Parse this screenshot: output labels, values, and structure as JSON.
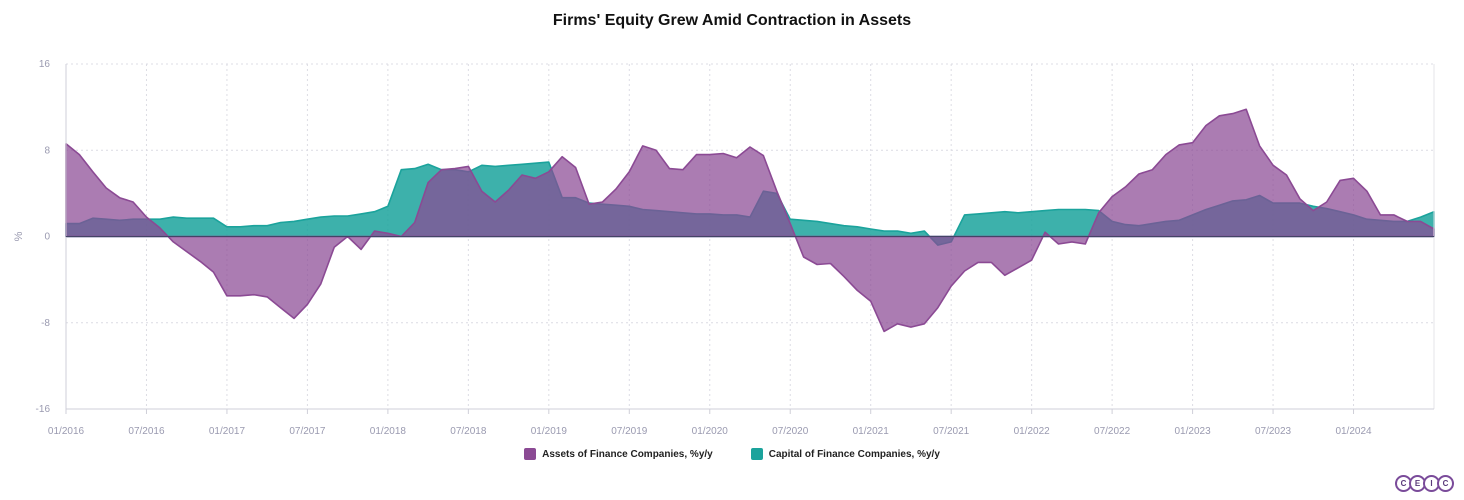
{
  "chart_data": {
    "type": "area",
    "title": "Firms' Equity Grew Amid Contraction in Assets",
    "ylabel": "%",
    "ylim": [
      -16,
      16
    ],
    "yticks": [
      -16,
      -8,
      0,
      8,
      16
    ],
    "grid": true,
    "legend_position": "bottom",
    "x_start": "01/2016",
    "x_end": "10/2024",
    "xtick_labels": [
      "01/2016",
      "07/2016",
      "01/2017",
      "07/2017",
      "01/2018",
      "07/2018",
      "01/2019",
      "07/2019",
      "01/2020",
      "07/2020",
      "01/2021",
      "07/2021",
      "01/2022",
      "07/2022",
      "01/2023",
      "07/2023",
      "01/2024"
    ],
    "series": [
      {
        "name": "Assets of Finance Companies, %y/y",
        "color": "#8b4a94",
        "values": [
          8.6,
          7.6,
          6.0,
          4.5,
          3.6,
          3.2,
          1.8,
          0.8,
          -0.5,
          -1.4,
          -2.3,
          -3.3,
          -5.5,
          -5.5,
          -5.4,
          -5.6,
          -6.6,
          -7.6,
          -6.3,
          -4.4,
          -1.0,
          0.0,
          -1.2,
          0.5,
          0.3,
          0.0,
          1.3,
          5.0,
          6.2,
          6.3,
          6.5,
          4.2,
          3.2,
          4.3,
          5.7,
          5.4,
          6.0,
          7.4,
          6.4,
          3.0,
          3.2,
          4.4,
          6.0,
          8.4,
          8.0,
          6.3,
          6.2,
          7.6,
          7.6,
          7.7,
          7.3,
          8.3,
          7.5,
          4.2,
          1.2,
          -1.9,
          -2.6,
          -2.5,
          -3.7,
          -5.0,
          -6.0,
          -8.8,
          -8.1,
          -8.4,
          -8.1,
          -6.6,
          -4.6,
          -3.2,
          -2.4,
          -2.4,
          -3.6,
          -2.9,
          -2.2,
          0.4,
          -0.7,
          -0.5,
          -0.7,
          2.2,
          3.7,
          4.6,
          5.8,
          6.2,
          7.6,
          8.5,
          8.7,
          10.3,
          11.2,
          11.4,
          11.8,
          8.4,
          6.6,
          5.7,
          3.5,
          2.4,
          3.2,
          5.2,
          5.4,
          4.2,
          2.0,
          2.0,
          1.4,
          1.4,
          0.7
        ]
      },
      {
        "name": "Capital of Finance Companies, %y/y",
        "color": "#1ba39c",
        "values": [
          1.2,
          1.2,
          1.7,
          1.6,
          1.5,
          1.6,
          1.6,
          1.6,
          1.8,
          1.7,
          1.7,
          1.7,
          0.9,
          0.9,
          1.0,
          1.0,
          1.3,
          1.4,
          1.6,
          1.8,
          1.9,
          1.9,
          2.1,
          2.3,
          2.8,
          6.2,
          6.3,
          6.7,
          6.2,
          6.2,
          6.0,
          6.6,
          6.5,
          6.6,
          6.7,
          6.8,
          6.9,
          3.6,
          3.6,
          3.1,
          3.0,
          2.9,
          2.8,
          2.5,
          2.4,
          2.3,
          2.2,
          2.1,
          2.1,
          2.0,
          2.0,
          1.8,
          4.2,
          4.0,
          1.6,
          1.5,
          1.4,
          1.2,
          1.0,
          0.9,
          0.7,
          0.5,
          0.5,
          0.3,
          0.5,
          -0.8,
          -0.5,
          2.0,
          2.1,
          2.2,
          2.3,
          2.2,
          2.3,
          2.4,
          2.5,
          2.5,
          2.5,
          2.4,
          1.4,
          1.1,
          1.0,
          1.2,
          1.4,
          1.5,
          2.0,
          2.5,
          2.9,
          3.3,
          3.4,
          3.8,
          3.1,
          3.1,
          3.1,
          2.8,
          2.6,
          2.3,
          2.0,
          1.6,
          1.5,
          1.4,
          1.4,
          1.8,
          2.3
        ]
      }
    ]
  },
  "legend": {
    "assets_label": "Assets of Finance Companies, %y/y",
    "capital_label": "Capital of Finance Companies, %y/y",
    "assets_color": "#8b4a94",
    "capital_color": "#1ba39c"
  },
  "logo": {
    "letters": [
      "C",
      "E",
      "I",
      "C"
    ]
  }
}
